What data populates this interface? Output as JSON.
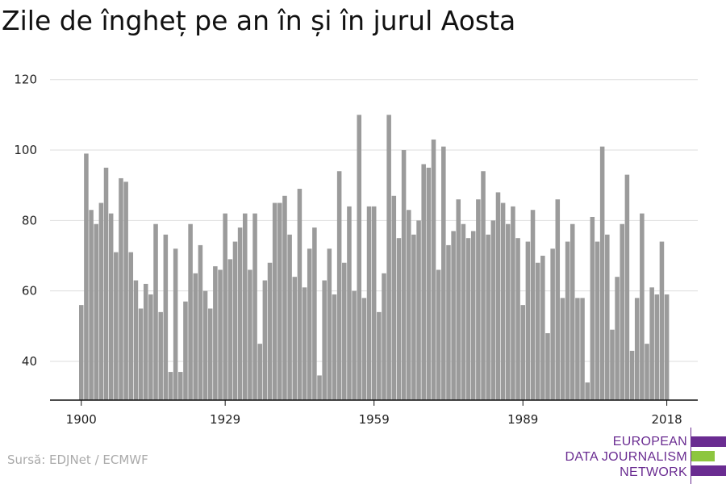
{
  "source": "Sursă: EDJNet / ECMWF",
  "logo": {
    "lines": [
      "EUROPEAN",
      "DATA JOURNALISM",
      "NETWORK"
    ],
    "colors": {
      "primary": "#6a2c91",
      "accent": "#8dc63f"
    }
  },
  "chart_data": {
    "type": "bar",
    "title": "Zile de îngheț pe an în și în jurul Aosta",
    "xlabel": "",
    "ylabel": "",
    "ylim": [
      29,
      122
    ],
    "y_ticks": [
      40,
      60,
      80,
      100,
      120
    ],
    "x_ticks": [
      1900,
      1929,
      1959,
      1989,
      2018
    ],
    "grid": true,
    "bar_color": "#9b9b9b",
    "series": [
      {
        "x": [
          1900,
          1901,
          1902,
          1903,
          1904,
          1905,
          1906,
          1907,
          1908,
          1909,
          1910,
          1911,
          1912,
          1913,
          1914,
          1915,
          1916,
          1917,
          1918,
          1919,
          1920,
          1921,
          1922,
          1923,
          1924,
          1925,
          1926,
          1927,
          1928,
          1929,
          1930,
          1931,
          1932,
          1933,
          1934,
          1935,
          1936,
          1937,
          1938,
          1939,
          1940,
          1941,
          1942,
          1943,
          1944,
          1945,
          1946,
          1947,
          1948,
          1949,
          1950,
          1951,
          1952,
          1953,
          1954,
          1955,
          1956,
          1957,
          1958,
          1959,
          1960,
          1961,
          1962,
          1963,
          1964,
          1965,
          1966,
          1967,
          1968,
          1969,
          1970,
          1971,
          1972,
          1973,
          1974,
          1975,
          1976,
          1977,
          1978,
          1979,
          1980,
          1981,
          1982,
          1983,
          1984,
          1985,
          1986,
          1987,
          1988,
          1989,
          1990,
          1991,
          1992,
          1993,
          1994,
          1995,
          1996,
          1997,
          1998,
          1999,
          2000,
          2001,
          2002,
          2003,
          2004,
          2005,
          2006,
          2007,
          2008,
          2009,
          2010,
          2011,
          2012,
          2013,
          2014,
          2015,
          2016,
          2017,
          2018
        ],
        "values": [
          56,
          99,
          83,
          79,
          85,
          95,
          82,
          71,
          92,
          91,
          71,
          63,
          55,
          62,
          59,
          79,
          54,
          76,
          37,
          72,
          37,
          57,
          79,
          65,
          73,
          60,
          55,
          67,
          66,
          82,
          69,
          74,
          78,
          82,
          66,
          82,
          45,
          63,
          68,
          85,
          85,
          87,
          76,
          64,
          89,
          61,
          72,
          78,
          36,
          63,
          72,
          59,
          94,
          68,
          84,
          60,
          110,
          58,
          84,
          84,
          54,
          65,
          110,
          87,
          75,
          100,
          83,
          76,
          80,
          96,
          95,
          103,
          66,
          101,
          73,
          77,
          86,
          79,
          75,
          77,
          86,
          94,
          76,
          80,
          88,
          85,
          79,
          84,
          75,
          56,
          74,
          83,
          68,
          70,
          48,
          72,
          86,
          58,
          74,
          79,
          58,
          58,
          34,
          81,
          74,
          101,
          76,
          49,
          64,
          79,
          93,
          43,
          58,
          82,
          45,
          61,
          59,
          74,
          59
        ]
      }
    ]
  }
}
